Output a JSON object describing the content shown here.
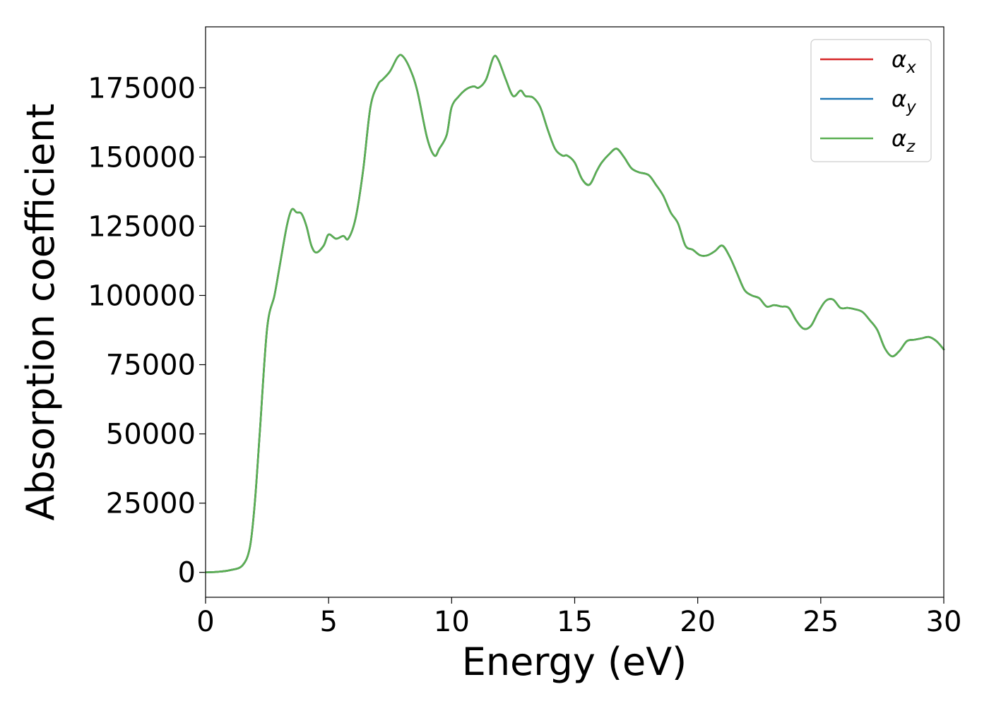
{
  "chart_data": {
    "type": "line",
    "title": "",
    "xlabel": "Energy (eV)",
    "ylabel": "Absorption coefficient",
    "xlim": [
      0,
      30
    ],
    "ylim": [
      -9000,
      197000
    ],
    "xticks": [
      0,
      5,
      10,
      15,
      20,
      25,
      30
    ],
    "xtick_labels": [
      "0",
      "5",
      "10",
      "15",
      "20",
      "25",
      "30"
    ],
    "yticks": [
      0,
      25000,
      50000,
      75000,
      100000,
      125000,
      150000,
      175000
    ],
    "ytick_labels": [
      "0",
      "25000",
      "50000",
      "75000",
      "100000",
      "125000",
      "150000",
      "175000"
    ],
    "grid": false,
    "legend_position": "top-right",
    "x": [
      0,
      0.5,
      1.0,
      1.5,
      1.8,
      2.0,
      2.2,
      2.5,
      2.8,
      3.0,
      3.3,
      3.5,
      3.7,
      3.9,
      4.1,
      4.3,
      4.5,
      4.8,
      5.0,
      5.3,
      5.6,
      5.8,
      6.1,
      6.4,
      6.7,
      7.0,
      7.2,
      7.5,
      7.8,
      8.0,
      8.3,
      8.6,
      9.0,
      9.3,
      9.5,
      9.8,
      10.0,
      10.3,
      10.6,
      10.9,
      11.1,
      11.4,
      11.7,
      11.9,
      12.2,
      12.5,
      12.8,
      13.0,
      13.3,
      13.6,
      13.9,
      14.2,
      14.5,
      14.7,
      15.0,
      15.3,
      15.6,
      15.9,
      16.1,
      16.4,
      16.7,
      17.0,
      17.3,
      17.6,
      18.0,
      18.3,
      18.6,
      18.9,
      19.2,
      19.5,
      19.8,
      20.1,
      20.4,
      20.7,
      21.0,
      21.3,
      21.6,
      21.9,
      22.2,
      22.5,
      22.8,
      23.1,
      23.4,
      23.7,
      24.0,
      24.3,
      24.6,
      24.9,
      25.2,
      25.5,
      25.8,
      26.1,
      26.4,
      26.7,
      27.0,
      27.3,
      27.6,
      27.9,
      28.2,
      28.5,
      28.8,
      29.1,
      29.4,
      29.7,
      30.0
    ],
    "series": [
      {
        "name": "α",
        "subscript": "x",
        "color": "#d62728",
        "y": [
          0,
          200,
          800,
          2500,
          9000,
          25000,
          50000,
          88000,
          100000,
          110000,
          125000,
          131000,
          130000,
          129500,
          125000,
          118000,
          115500,
          118000,
          122000,
          120500,
          121500,
          120500,
          128000,
          145000,
          168000,
          176000,
          178000,
          181000,
          186000,
          186500,
          182000,
          174000,
          157000,
          150500,
          153000,
          158000,
          168000,
          172000,
          174500,
          175500,
          175000,
          178000,
          186000,
          185000,
          178000,
          172000,
          174000,
          172000,
          171500,
          168000,
          160000,
          153000,
          150500,
          150500,
          148000,
          142000,
          140000,
          145000,
          148000,
          151000,
          153000,
          150000,
          146000,
          144500,
          143500,
          140000,
          136000,
          130000,
          126000,
          118000,
          116500,
          114500,
          114500,
          116000,
          118000,
          114000,
          108000,
          102000,
          100000,
          99000,
          96000,
          96500,
          96000,
          95500,
          91000,
          88000,
          89000,
          94000,
          98000,
          98500,
          95500,
          95500,
          95000,
          94000,
          91000,
          87500,
          81000,
          78000,
          80000,
          83500,
          84000,
          84500,
          85000,
          83500,
          80500
        ]
      },
      {
        "name": "α",
        "subscript": "y",
        "color": "#1f77b4",
        "y": [
          0,
          200,
          800,
          2500,
          9000,
          25000,
          50000,
          88000,
          100000,
          110000,
          125000,
          131000,
          130000,
          129500,
          125000,
          118000,
          115500,
          118000,
          122000,
          120500,
          121500,
          120500,
          128000,
          145000,
          168000,
          176000,
          178000,
          181000,
          186000,
          186500,
          182000,
          174000,
          157000,
          150500,
          153000,
          158000,
          168000,
          172000,
          174500,
          175500,
          175000,
          178000,
          186000,
          185000,
          178000,
          172000,
          174000,
          172000,
          171500,
          168000,
          160000,
          153000,
          150500,
          150500,
          148000,
          142000,
          140000,
          145000,
          148000,
          151000,
          153000,
          150000,
          146000,
          144500,
          143500,
          140000,
          136000,
          130000,
          126000,
          118000,
          116500,
          114500,
          114500,
          116000,
          118000,
          114000,
          108000,
          102000,
          100000,
          99000,
          96000,
          96500,
          96000,
          95500,
          91000,
          88000,
          89000,
          94000,
          98000,
          98500,
          95500,
          95500,
          95000,
          94000,
          91000,
          87500,
          81000,
          78000,
          80000,
          83500,
          84000,
          84500,
          85000,
          83500,
          80500
        ]
      },
      {
        "name": "α",
        "subscript": "z",
        "color": "#5aaf52",
        "y": [
          0,
          200,
          800,
          2500,
          9000,
          25000,
          50000,
          88000,
          100000,
          110000,
          125000,
          131000,
          130000,
          129500,
          125000,
          118000,
          115500,
          118000,
          122000,
          120500,
          121500,
          120500,
          128000,
          145000,
          168000,
          176000,
          178000,
          181000,
          186000,
          186500,
          182000,
          174000,
          157000,
          150500,
          153000,
          158000,
          168000,
          172000,
          174500,
          175500,
          175000,
          178000,
          186000,
          185000,
          178000,
          172000,
          174000,
          172000,
          171500,
          168000,
          160000,
          153000,
          150500,
          150500,
          148000,
          142000,
          140000,
          145000,
          148000,
          151000,
          153000,
          150000,
          146000,
          144500,
          143500,
          140000,
          136000,
          130000,
          126000,
          118000,
          116500,
          114500,
          114500,
          116000,
          118000,
          114000,
          108000,
          102000,
          100000,
          99000,
          96000,
          96500,
          96000,
          95500,
          91000,
          88000,
          89000,
          94000,
          98000,
          98500,
          95500,
          95500,
          95000,
          94000,
          91000,
          87500,
          81000,
          78000,
          80000,
          83500,
          84000,
          84500,
          85000,
          83500,
          80500
        ]
      }
    ]
  }
}
